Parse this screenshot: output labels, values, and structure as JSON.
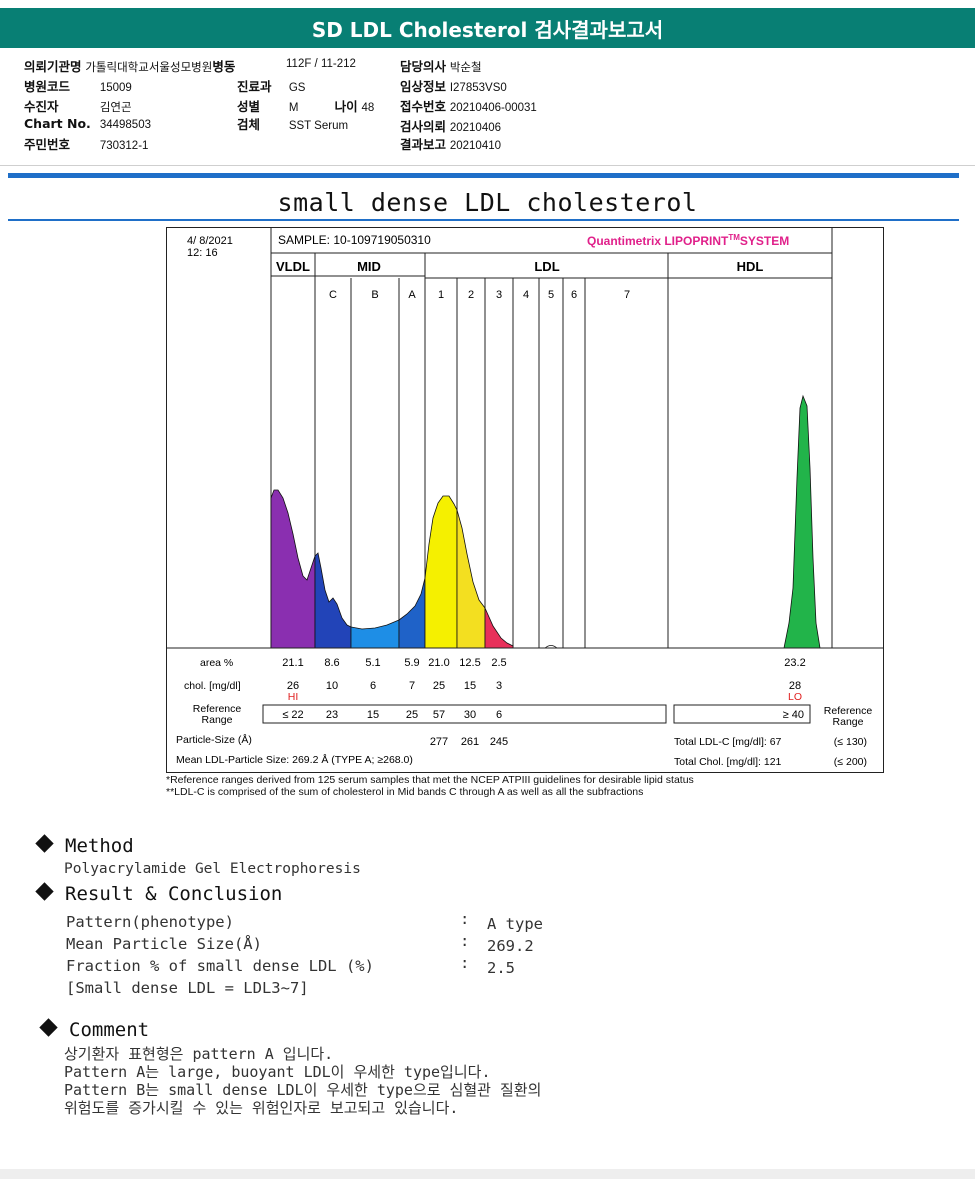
{
  "report": {
    "title": "SD LDL Cholesterol 검사결과보고서",
    "section_title": "small dense LDL cholesterol"
  },
  "patient": {
    "hospital_label": "의뢰기관명",
    "hospital": "가톨릭대학교서울성모병원",
    "ward_label": "병동",
    "ward": "112F / 11-212",
    "doctor_label": "담당의사",
    "doctor": "박순철",
    "hospital_code_label": "병원코드",
    "hospital_code": "15009",
    "dept_label": "진료과",
    "dept": "GS",
    "clinical_label": "임상정보",
    "clinical": "I27853VS0",
    "patient_label": "수진자",
    "patient_name": "김연곤",
    "sex_label": "성별",
    "sex": "M",
    "age_label": "나이",
    "age": "48",
    "receipt_label": "접수번호",
    "receipt": "20210406-00031",
    "chart_label": "Chart No.",
    "chart_no": "34498503",
    "specimen_label": "검체",
    "specimen": "SST Serum",
    "request_label": "검사의뢰",
    "request_date": "20210406",
    "id_label": "주민번호",
    "id_no": "730312-1",
    "report_label": "결과보고",
    "report_date": "20210410"
  },
  "chart_data": {
    "type": "area",
    "date": "4/ 8/2021",
    "time": "12: 16",
    "sample": "SAMPLE:  10-109719050310",
    "brand": "Quantimetrix LIPOPRINT",
    "brand_tm": "TM",
    "brand_suffix": "SYSTEM",
    "groups": [
      "VLDL",
      "MID",
      "LDL",
      "HDL"
    ],
    "bands": [
      "C",
      "B",
      "A",
      "1",
      "2",
      "3",
      "4",
      "5",
      "6",
      "7"
    ],
    "colors": {
      "VLDL": "#8a2fb0",
      "C": "#2244b8",
      "B": "#1e8ee6",
      "A": "#1f62c8",
      "L1": "#f5f000",
      "L2": "#f3df20",
      "L3": "#e8305a",
      "HDL": "#22b44a"
    },
    "area_label": "area %",
    "area": [
      "21.1",
      "8.6",
      "5.1",
      "5.9",
      "21.0",
      "12.5",
      "2.5"
    ],
    "area_hdl": "23.2",
    "chol_label": "chol. [mg/dl]",
    "chol": [
      "26",
      "10",
      "6",
      "7",
      "25",
      "15",
      "3"
    ],
    "chol_hdl": "28",
    "flag_vldl": "HI",
    "flag_hdl": "LO",
    "ref_label_1": "Reference",
    "ref_label_2": "Range",
    "ref": [
      "≤ 22",
      "23",
      "15",
      "25",
      "57",
      "30",
      "6"
    ],
    "ref_hdl": "≥ 40",
    "size_label": "Particle-Size (Å)",
    "size": [
      "277",
      "261",
      "245"
    ],
    "mean_size": "Mean LDL-Particle Size:   269.2 Å   (TYPE A; ≥268.0)",
    "total_ldl": "Total LDL-C [mg/dl]:  67",
    "total_ldl_ref": "(≤ 130)",
    "total_chol": "Total Chol. [mg/dl]:   121",
    "total_chol_ref": "(≤ 200)"
  },
  "footnotes": [
    "*Reference ranges derived from 125 serum samples that met the NCEP ATPIII guidelines for desirable lipid status",
    "**LDL-C is comprised of the sum of cholesterol in Mid bands C through A as well as all the subfractions"
  ],
  "method": {
    "heading": "Method",
    "text": "Polyacrylamide Gel Electrophoresis"
  },
  "result": {
    "heading": "Result & Conclusion",
    "rows": [
      {
        "label": "Pattern(phenotype)",
        "sep": ":",
        "value": "A type"
      },
      {
        "label": "Mean Particle Size(Å)",
        "sep": ":",
        "value": "269.2"
      },
      {
        "label": "Fraction % of small dense LDL (%)",
        "sep": ":",
        "value": "2.5"
      }
    ],
    "note": "[Small dense LDL = LDL3~7]"
  },
  "comment": {
    "heading": "Comment",
    "lines": [
      "상기환자 표현형은 pattern A 입니다.",
      "Pattern A는 large, buoyant LDL이 우세한 type입니다.",
      "Pattern B는 small dense LDL이 우세한 type으로 심혈관 질환의",
      "위험도를 증가시킬 수 있는 위험인자로 보고되고 있습니다."
    ]
  }
}
